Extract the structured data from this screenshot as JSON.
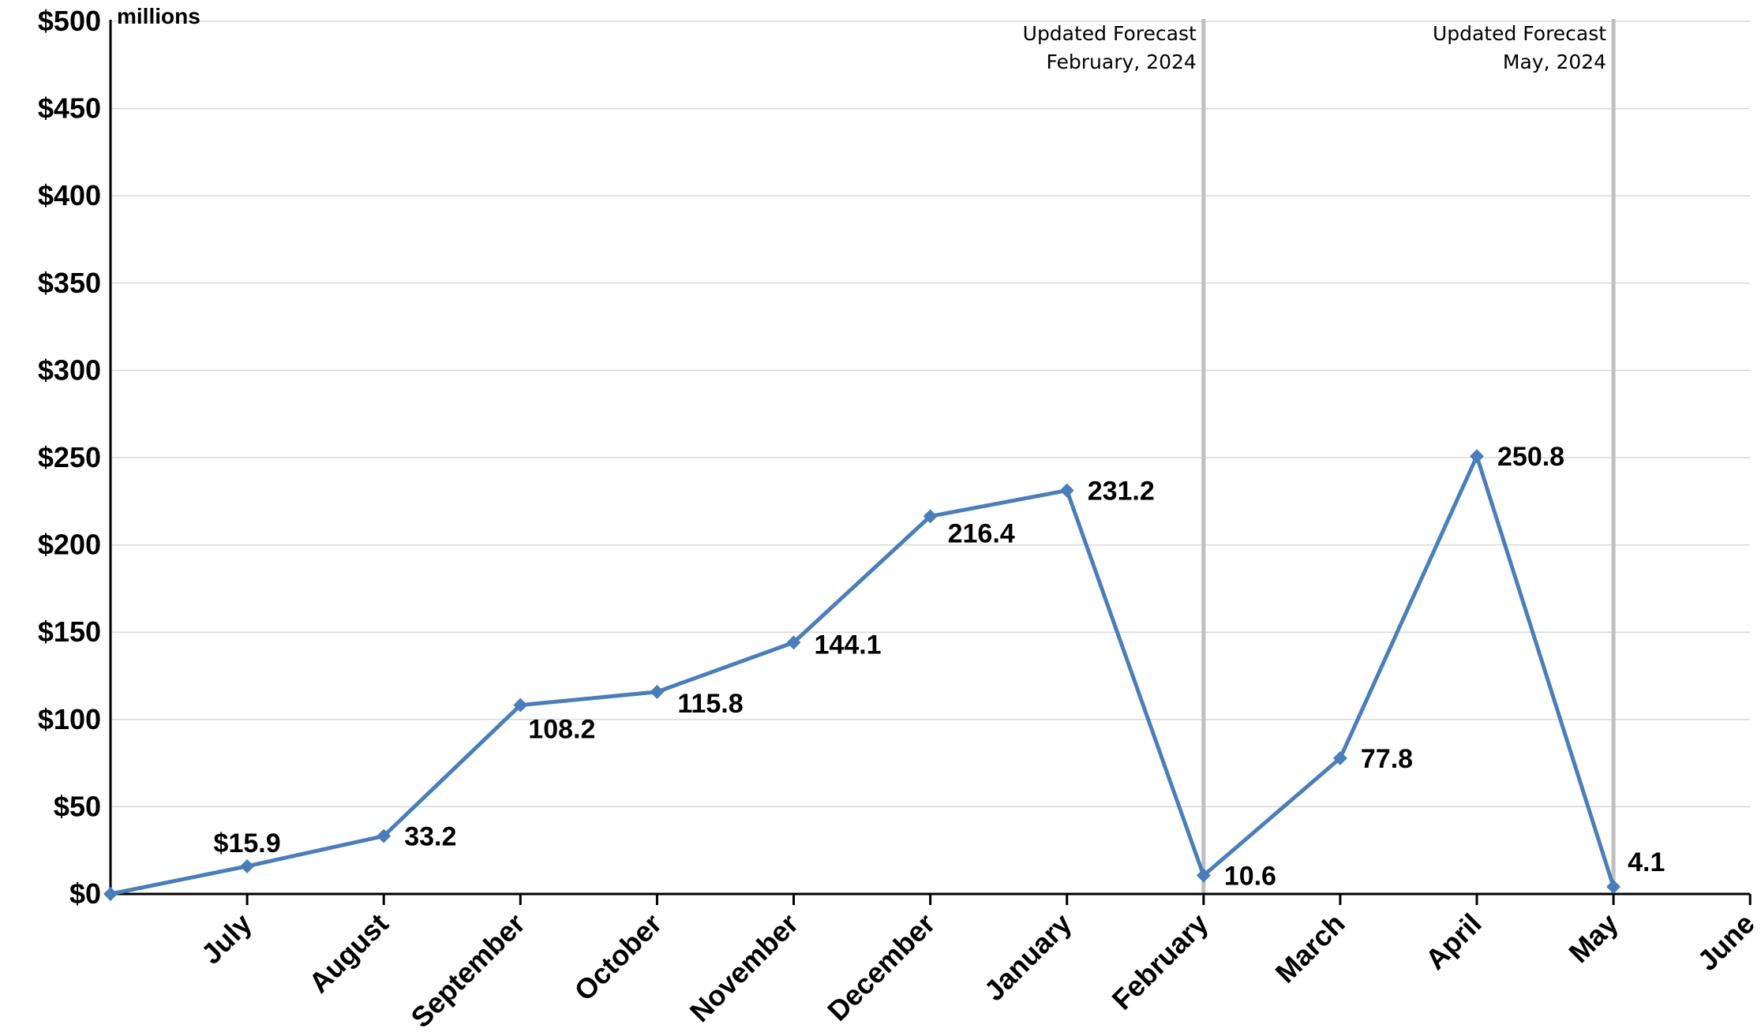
{
  "chart_data": {
    "type": "line",
    "y_unit_label": "millions",
    "categories": [
      "July",
      "August",
      "September",
      "October",
      "November",
      "December",
      "January",
      "February",
      "March",
      "April",
      "May",
      "June"
    ],
    "series": [
      {
        "x": [
          "",
          "July",
          "August",
          "September",
          "October",
          "November",
          "December",
          "January",
          "February",
          "March",
          "April",
          "May"
        ],
        "values": [
          0,
          15.9,
          33.2,
          108.2,
          115.8,
          144.1,
          216.4,
          231.2,
          10.6,
          77.8,
          250.8,
          4.1
        ],
        "data_labels": [
          "",
          "$15.9",
          "33.2",
          "108.2",
          "115.8",
          "144.1",
          "216.4",
          "231.2",
          "10.6",
          "77.8",
          "250.8",
          "4.1"
        ]
      }
    ],
    "ylim": [
      0,
      500
    ],
    "yticks": [
      0,
      50,
      100,
      150,
      200,
      250,
      300,
      350,
      400,
      450,
      500
    ],
    "ytick_labels": [
      "$0",
      "$50",
      "$100",
      "$150",
      "$200",
      "$250",
      "$300",
      "$350",
      "$400",
      "$450",
      "$500"
    ],
    "grid": true,
    "annotations": [
      {
        "at": "February",
        "lines": [
          "Updated Forecast",
          "February, 2024"
        ]
      },
      {
        "at": "May",
        "lines": [
          "Updated Forecast",
          "May, 2024"
        ]
      }
    ],
    "colors": {
      "line": "#4a7ebb",
      "marker": "#4a7ebb",
      "grid": "#d9d9d9",
      "forecast_line": "#bfbfbf",
      "axis": "#000000"
    }
  }
}
